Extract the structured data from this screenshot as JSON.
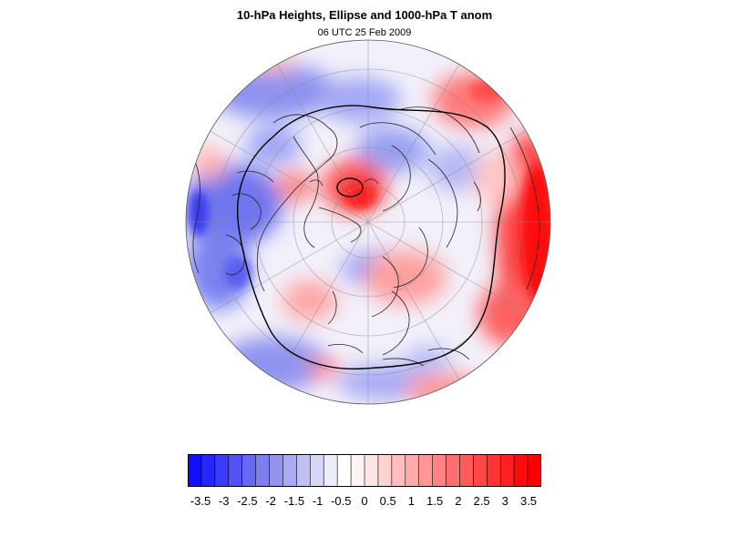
{
  "title": "10-hPa Heights, Ellipse and 1000-hPa T anom",
  "subtitle": "06 UTC 25 Feb 2009",
  "map": {
    "projection": "polar-stereographic-north",
    "fill_field": "1000-hPa temperature anomaly",
    "overlays": [
      "10-hPa heights contour",
      "vortex ellipse",
      "coastlines",
      "lat-lon graticule"
    ]
  },
  "colorbar": {
    "labels": [
      "-3.5",
      "-3",
      "-2.5",
      "-2",
      "-1.5",
      "-1",
      "-0.5",
      "0",
      "0.5",
      "1",
      "1.5",
      "2",
      "2.5",
      "3",
      "3.5"
    ],
    "colors": [
      "#1010ff",
      "#2626fb",
      "#3c3cf8",
      "#5252f5",
      "#6868f2",
      "#7e7eef",
      "#9494ee",
      "#aaaaee",
      "#c0c0f2",
      "#d6d6f6",
      "#ececfb",
      "#ffffff",
      "#fff4f4",
      "#ffe6e6",
      "#ffd2d2",
      "#ffbfbf",
      "#ffabab",
      "#ff9797",
      "#ff8383",
      "#ff6f6f",
      "#ff5b5b",
      "#ff4747",
      "#ff3333",
      "#ff1f1f",
      "#ff0b0b",
      "#ff0000"
    ]
  }
}
